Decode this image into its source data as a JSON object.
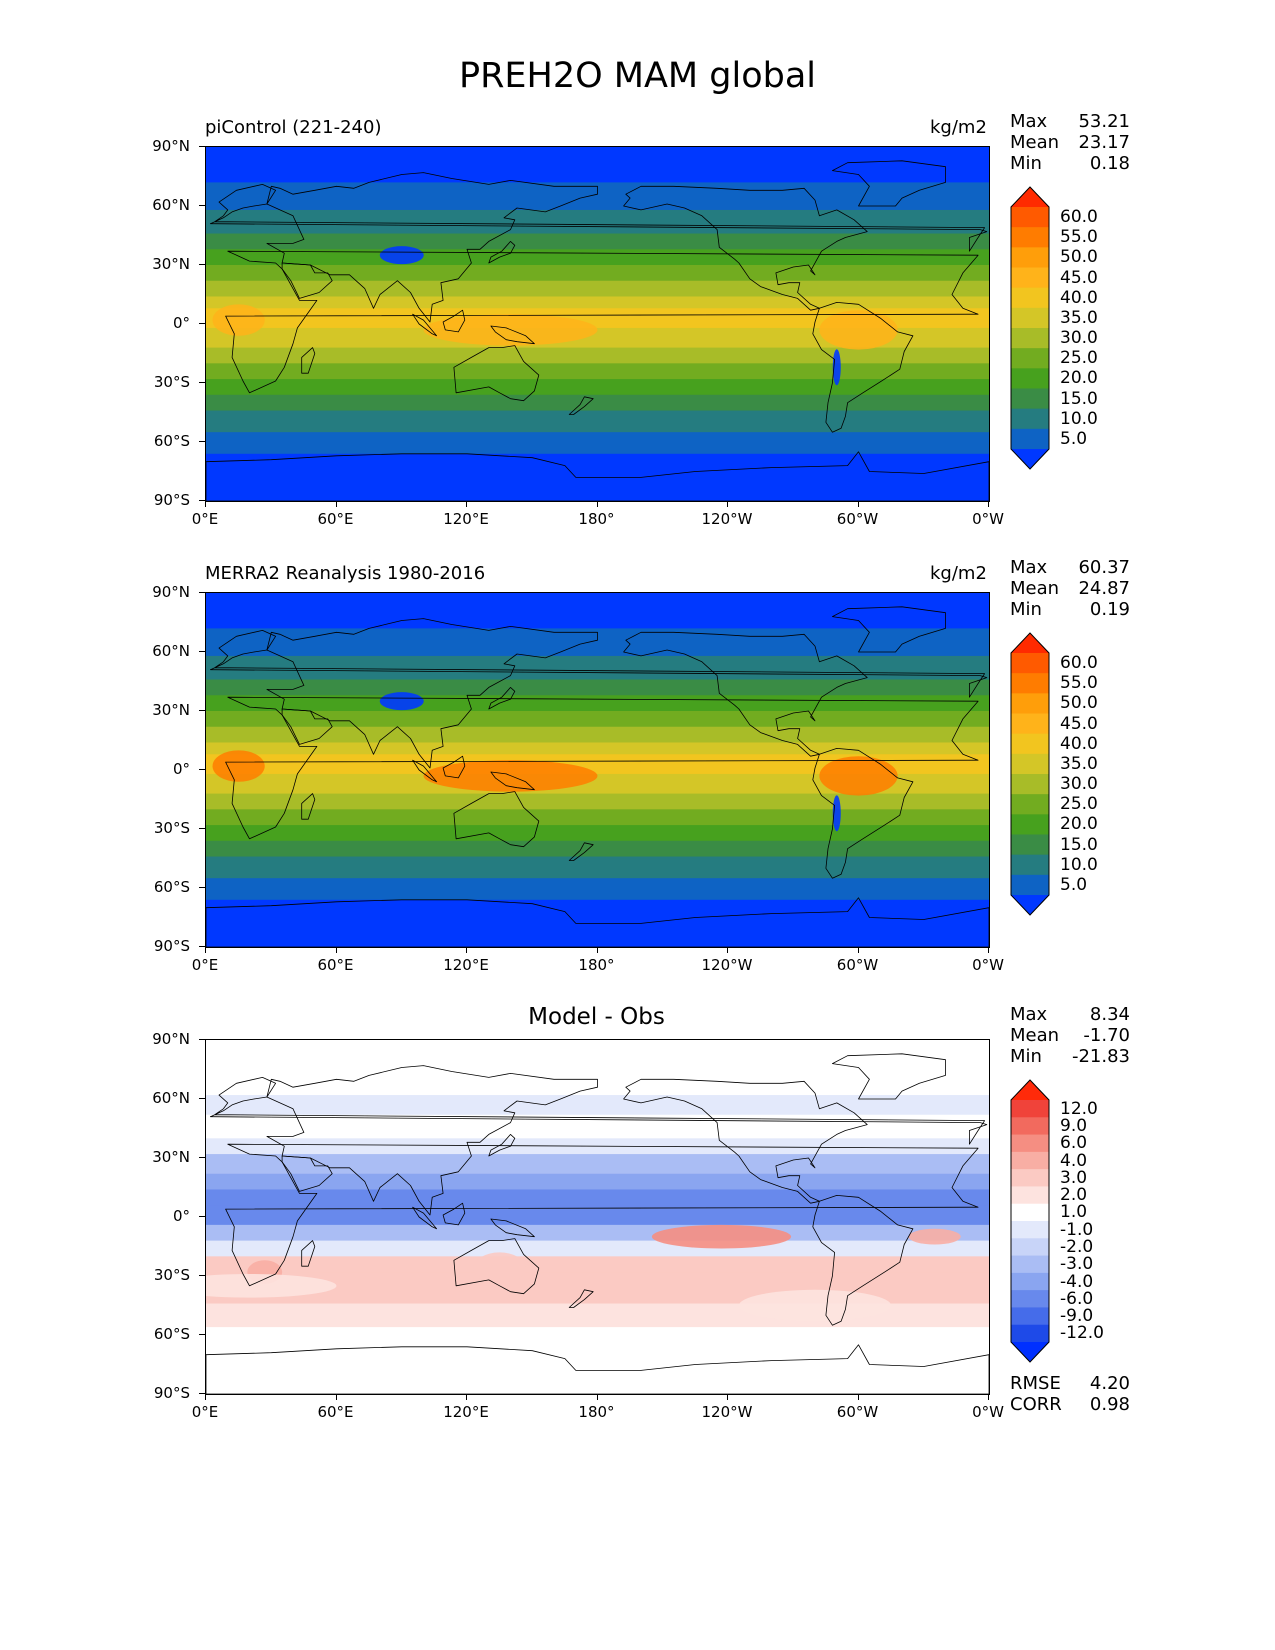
{
  "figure": {
    "title": "PREH2O MAM global"
  },
  "axis_ticks": {
    "x": [
      "0°E",
      "60°E",
      "120°E",
      "180°",
      "120°W",
      "60°W",
      "0°W"
    ],
    "y": [
      "90°N",
      "60°N",
      "30°N",
      "0°",
      "30°S",
      "60°S",
      "90°S"
    ]
  },
  "panels": [
    {
      "left_label": "piControl (221-240)",
      "right_label": "kg/m2",
      "center_label": "",
      "stats": [
        {
          "name": "Max",
          "value": "53.21"
        },
        {
          "name": "Mean",
          "value": "23.17"
        },
        {
          "name": "Min",
          "value": "0.18"
        }
      ],
      "colorbar": {
        "labels": [
          "60.0",
          "55.0",
          "50.0",
          "45.0",
          "40.0",
          "35.0",
          "30.0",
          "25.0",
          "20.0",
          "15.0",
          "10.0",
          "5.0"
        ],
        "colors": [
          "#ff2a00",
          "#ff5a00",
          "#ff7c00",
          "#ff9e0a",
          "#ffb31a",
          "#f2c51f",
          "#d4c627",
          "#a8bc28",
          "#72ac20",
          "#47a11e",
          "#3a8c45",
          "#257c80",
          "#0e63c4",
          "#0038ff"
        ]
      },
      "footer_stats": []
    },
    {
      "left_label": "MERRA2 Reanalysis 1980-2016",
      "right_label": "kg/m2",
      "center_label": "",
      "stats": [
        {
          "name": "Max",
          "value": "60.37"
        },
        {
          "name": "Mean",
          "value": "24.87"
        },
        {
          "name": "Min",
          "value": "0.19"
        }
      ],
      "colorbar": {
        "labels": [
          "60.0",
          "55.0",
          "50.0",
          "45.0",
          "40.0",
          "35.0",
          "30.0",
          "25.0",
          "20.0",
          "15.0",
          "10.0",
          "5.0"
        ],
        "colors": [
          "#ff2a00",
          "#ff5a00",
          "#ff7c00",
          "#ff9e0a",
          "#ffb31a",
          "#f2c51f",
          "#d4c627",
          "#a8bc28",
          "#72ac20",
          "#47a11e",
          "#3a8c45",
          "#257c80",
          "#0e63c4",
          "#0038ff"
        ]
      },
      "footer_stats": []
    },
    {
      "left_label": "",
      "right_label": "",
      "center_label": "Model - Obs",
      "stats": [
        {
          "name": "Max",
          "value": "8.34"
        },
        {
          "name": "Mean",
          "value": "-1.70"
        },
        {
          "name": "Min",
          "value": "-21.83"
        }
      ],
      "colorbar": {
        "labels": [
          "12.0",
          "9.0",
          "6.0",
          "4.0",
          "3.0",
          "2.0",
          "1.0",
          "-1.0",
          "-2.0",
          "-3.0",
          "-4.0",
          "-6.0",
          "-9.0",
          "-12.0"
        ],
        "colors": [
          "#ff2a0a",
          "#f0433a",
          "#f26a5e",
          "#f58e82",
          "#f8aea4",
          "#fbcac3",
          "#fde3df",
          "#ffffff",
          "#e3e9fb",
          "#c8d4f8",
          "#aabdf4",
          "#8aa5f0",
          "#6889ec",
          "#456cea",
          "#1e4ae8",
          "#0030ff"
        ]
      },
      "footer_stats": [
        {
          "name": "RMSE",
          "value": "4.20"
        },
        {
          "name": "CORR",
          "value": "0.98"
        }
      ]
    }
  ]
}
